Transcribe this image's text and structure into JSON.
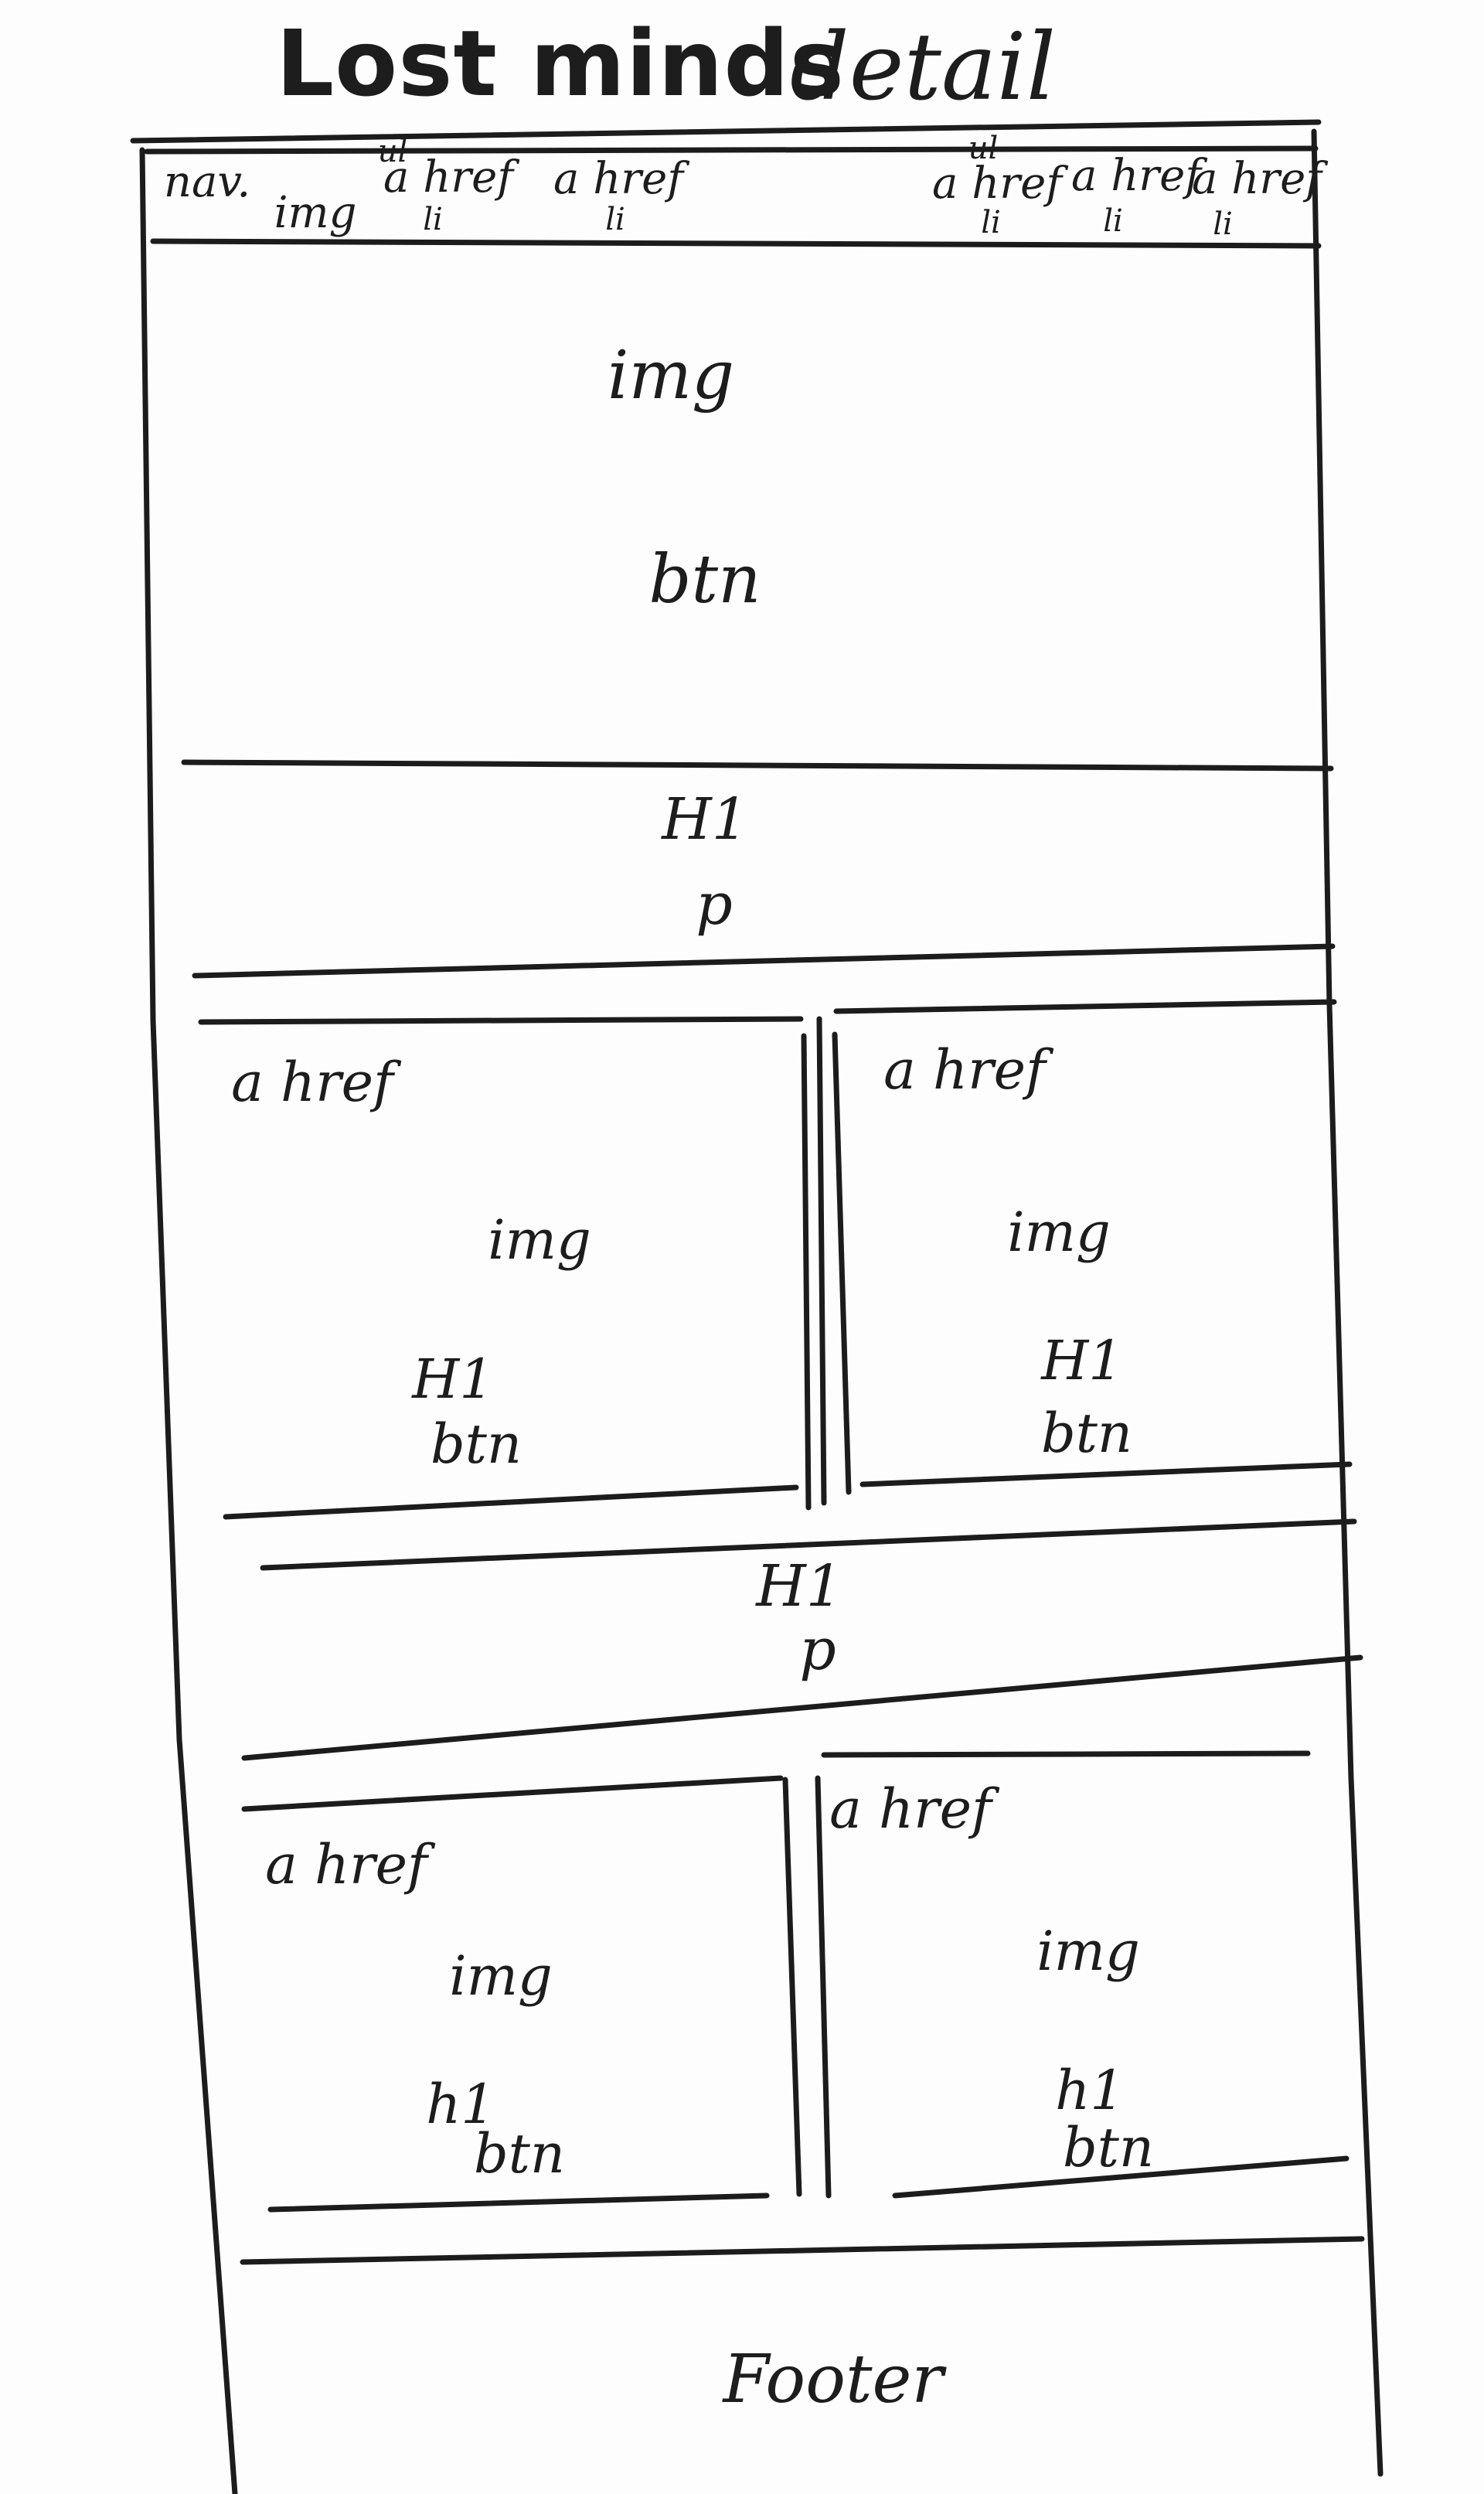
{
  "title": {
    "main": "Lost minds",
    "sub": "detail"
  },
  "nav": {
    "label": "nav.",
    "logo": "img",
    "menus": [
      {
        "ul": "ul",
        "items": [
          {
            "link": "a href",
            "li": "li"
          },
          {
            "link": "a href",
            "li": "li"
          }
        ]
      },
      {
        "ul": "ul",
        "items": [
          {
            "link": "a href",
            "li": "li"
          },
          {
            "link": "a href",
            "li": "li"
          },
          {
            "link": "a href",
            "li": "li"
          }
        ]
      }
    ]
  },
  "hero": {
    "image": "img",
    "button": "btn"
  },
  "intro": {
    "heading": "H1",
    "paragraph": "p"
  },
  "cards_row_1": [
    {
      "link": "a href",
      "image": "img",
      "heading": "H1",
      "button": "btn"
    },
    {
      "link": "a href",
      "image": "img",
      "heading": "H1",
      "button": "btn"
    }
  ],
  "section_2": {
    "heading": "H1",
    "paragraph": "p"
  },
  "cards_row_2": [
    {
      "link": "a href",
      "image": "img",
      "heading": "h1",
      "button": "btn"
    },
    {
      "link": "a href",
      "image": "img",
      "heading": "h1",
      "button": "btn"
    }
  ],
  "footer": {
    "label": "Footer"
  },
  "colors": {
    "ink": "#1c1c1c",
    "paper": "#fdfdfd"
  }
}
